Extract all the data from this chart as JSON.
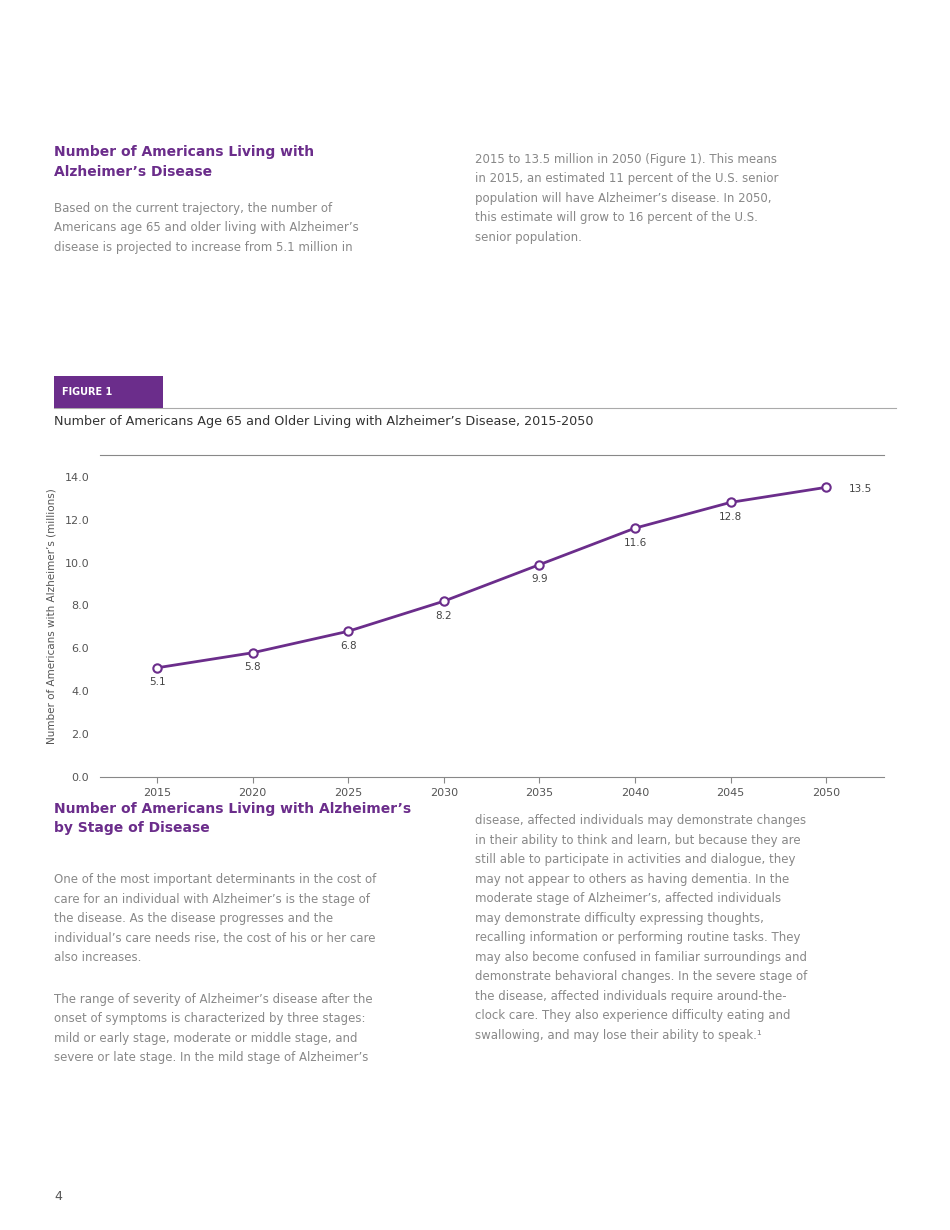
{
  "bg_color": "#ffffff",
  "purple_color": "#6b2d8b",
  "text_color": "#888888",
  "dark_text_color": "#444444",
  "figure_label_bg": "#6b2d8b",
  "figure_label_text": "#ffffff",
  "section1_title": "Number of Americans Living with\nAlzheimer’s Disease",
  "section1_left_text": "Based on the current trajectory, the number of\nAmericans age 65 and older living with Alzheimer’s\ndisease is projected to increase from 5.1 million in",
  "section1_right_text": "2015 to 13.5 million in 2050 (Figure 1). This means\nin 2015, an estimated 11 percent of the U.S. senior\npopulation will have Alzheimer’s disease. In 2050,\nthis estimate will grow to 16 percent of the U.S.\nsenior population.",
  "figure_label": "FIGURE 1",
  "chart_title": "Number of Americans Age 65 and Older Living with Alzheimer’s Disease, 2015-2050",
  "ylabel": "Number of Americans with Alzheimer’s (millions)",
  "x_values": [
    2015,
    2020,
    2025,
    2030,
    2035,
    2040,
    2045,
    2050
  ],
  "y_values": [
    5.1,
    5.8,
    6.8,
    8.2,
    9.9,
    11.6,
    12.8,
    13.5
  ],
  "y_labels": [
    "5.1",
    "5.8",
    "6.8",
    "8.2",
    "9.9",
    "11.6",
    "12.8",
    "13.5"
  ],
  "ylim": [
    0.0,
    15.0
  ],
  "yticks": [
    0.0,
    2.0,
    4.0,
    6.0,
    8.0,
    10.0,
    12.0,
    14.0
  ],
  "ytick_labels": [
    "0.0",
    "2.0",
    "4.0",
    "6.0",
    "8.0",
    "10.0",
    "12.0",
    "14.0"
  ],
  "section2_title": "Number of Americans Living with Alzheimer’s\nby Stage of Disease",
  "section2_left_p1": "One of the most important determinants in the cost of\ncare for an individual with Alzheimer’s is the stage of\nthe disease. As the disease progresses and the\nindividual’s care needs rise, the cost of his or her care\nalso increases.",
  "section2_left_p2": "The range of severity of Alzheimer’s disease after the\nonset of symptoms is characterized by three stages:\nmild or early stage, moderate or middle stage, and\nsevere or late stage. In the mild stage of Alzheimer’s",
  "section2_right_text": "disease, affected individuals may demonstrate changes\nin their ability to think and learn, but because they are\nstill able to participate in activities and dialogue, they\nmay not appear to others as having dementia. In the\nmoderate stage of Alzheimer’s, affected individuals\nmay demonstrate difficulty expressing thoughts,\nrecalling information or performing routine tasks. They\nmay also become confused in familiar surroundings and\ndemonstrate behavioral changes. In the severe stage of\nthe disease, affected individuals require around-the-\nclock care. They also experience difficulty eating and\nswallowing, and may lose their ability to speak.¹",
  "page_number": "4",
  "line_color": "#6b2d8b",
  "marker_face": "#ffffff",
  "marker_edge": "#6b2d8b"
}
